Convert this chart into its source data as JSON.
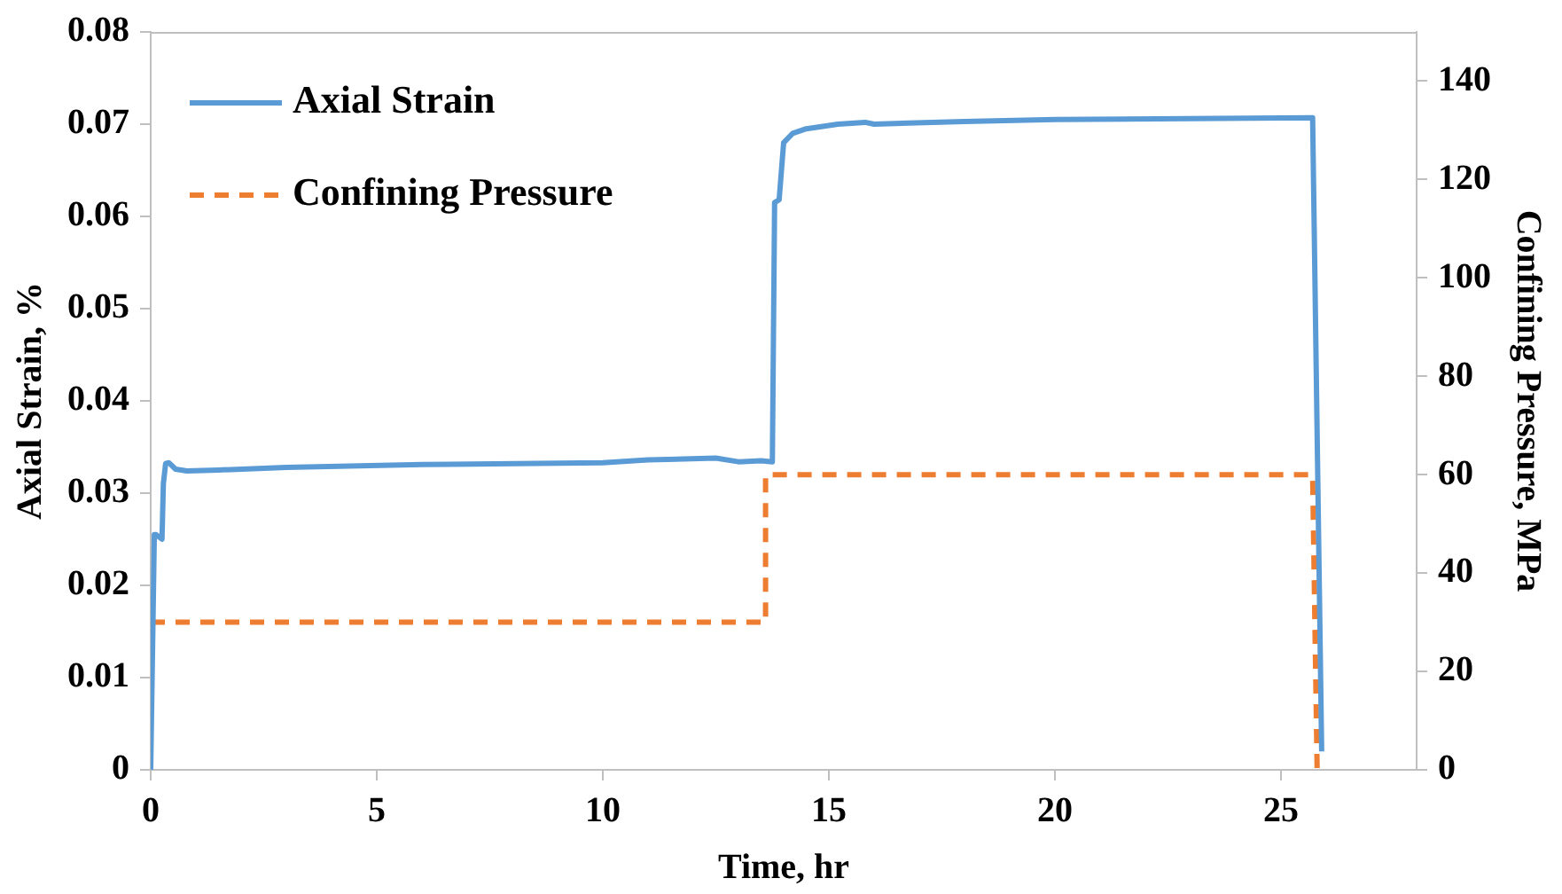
{
  "chart_data": {
    "type": "line",
    "xlabel": "Time, hr",
    "ylabel": "Axial Strain, %",
    "y2label": "Confining Pressure, MPa",
    "xlim": [
      0,
      28
    ],
    "xticks": [
      0,
      5,
      10,
      15,
      20,
      25
    ],
    "ylim": [
      0,
      0.08
    ],
    "yticks": [
      0,
      0.01,
      0.02,
      0.03,
      0.04,
      0.05,
      0.06,
      0.07,
      0.08
    ],
    "y2lim": [
      0,
      150
    ],
    "y2ticks": [
      0,
      20,
      40,
      60,
      80,
      100,
      120,
      140
    ],
    "grid": false,
    "legend": "top left",
    "marker": "none",
    "series": [
      {
        "name": "Axial Strain",
        "color": "#5b9bd5",
        "line_style": "solid",
        "x": [
          0,
          0.08,
          0.12,
          0.25,
          0.28,
          0.33,
          0.4,
          0.55,
          0.8,
          1.5,
          3,
          6,
          10,
          11,
          12.5,
          13,
          13.5,
          13.75,
          13.8,
          13.9,
          14,
          14.2,
          14.5,
          15.2,
          15.8,
          16,
          18,
          20,
          25.7,
          25.9
        ],
        "values": [
          0,
          0.0255,
          0.0255,
          0.025,
          0.031,
          0.0332,
          0.0333,
          0.0326,
          0.0324,
          0.0325,
          0.0328,
          0.0331,
          0.0333,
          0.0336,
          0.0338,
          0.0334,
          0.0335,
          0.0334,
          0.0615,
          0.0618,
          0.068,
          0.069,
          0.0695,
          0.07,
          0.0702,
          0.07,
          0.0703,
          0.0705,
          0.0707,
          0.002
        ]
      },
      {
        "name": "Confining Pressure",
        "color": "#ed7d31",
        "line_style": "dashed",
        "axis": "y2",
        "x": [
          0,
          13.6,
          13.6,
          25.7,
          25.8
        ],
        "values": [
          30,
          30,
          60,
          60,
          0
        ]
      }
    ]
  }
}
